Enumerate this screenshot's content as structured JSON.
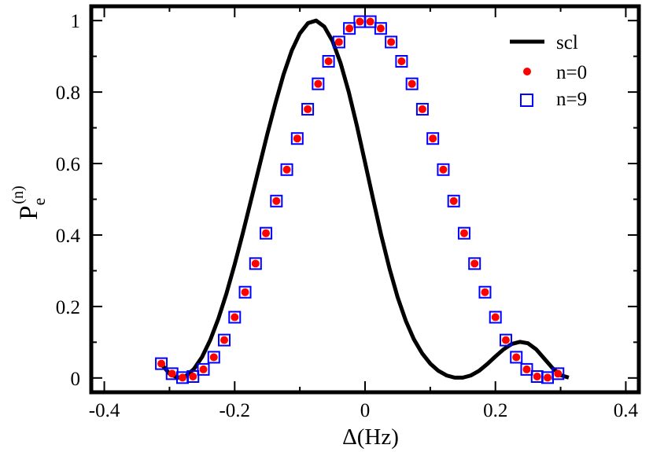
{
  "chart_data": {
    "type": "line",
    "title": "",
    "xlabel": "Δ(Hz)",
    "ylabel": {
      "main": "P",
      "sub": "e",
      "sup": "(n)"
    },
    "xlim": [
      -0.42,
      0.42
    ],
    "ylim": [
      -0.04,
      1.04
    ],
    "xticks": [
      -0.4,
      -0.2,
      0,
      0.2,
      0.4
    ],
    "xtick_labels": [
      "-0.4",
      "-0.2",
      "0",
      "0.2",
      "0.4"
    ],
    "yticks": [
      0,
      0.2,
      0.4,
      0.6,
      0.8,
      1
    ],
    "ytick_labels": [
      "0",
      "0.2",
      "0.4",
      "0.6",
      "0.8",
      "1"
    ],
    "grid": false,
    "legend_position": "top-right",
    "series": [
      {
        "name": "scl",
        "style": "line",
        "color": "#000000",
        "x": [
          -0.3125,
          -0.3,
          -0.2875,
          -0.275,
          -0.2625,
          -0.25,
          -0.2375,
          -0.225,
          -0.2125,
          -0.2,
          -0.1875,
          -0.175,
          -0.1625,
          -0.15,
          -0.1375,
          -0.125,
          -0.1125,
          -0.1,
          -0.0875,
          -0.075,
          -0.0625,
          -0.05,
          -0.0375,
          -0.025,
          -0.0125,
          0,
          0.0125,
          0.025,
          0.0375,
          0.05,
          0.0625,
          0.075,
          0.0875,
          0.1,
          0.1125,
          0.125,
          0.1375,
          0.15,
          0.1625,
          0.175,
          0.1875,
          0.2,
          0.2125,
          0.225,
          0.2375,
          0.25,
          0.2625,
          0.275,
          0.2875,
          0.3,
          0.3125
        ],
        "y": [
          0.039,
          0.012,
          0.001,
          0.005,
          0.025,
          0.059,
          0.106,
          0.166,
          0.237,
          0.318,
          0.405,
          0.497,
          0.59,
          0.682,
          0.769,
          0.849,
          0.916,
          0.964,
          0.993,
          1.0,
          0.983,
          0.943,
          0.881,
          0.8,
          0.706,
          0.603,
          0.499,
          0.398,
          0.306,
          0.226,
          0.16,
          0.108,
          0.069,
          0.04,
          0.02,
          0.007,
          0.001,
          0.001,
          0.007,
          0.02,
          0.039,
          0.06,
          0.08,
          0.095,
          0.101,
          0.097,
          0.08,
          0.054,
          0.028,
          0.008,
          0.001
        ]
      },
      {
        "name": "n=0",
        "style": "dots",
        "color": "#ff0000",
        "x": [
          -0.3125,
          -0.296,
          -0.28,
          -0.264,
          -0.248,
          -0.232,
          -0.216,
          -0.2,
          -0.184,
          -0.168,
          -0.152,
          -0.136,
          -0.12,
          -0.104,
          -0.088,
          -0.072,
          -0.056,
          -0.04,
          -0.024,
          -0.008,
          0.008,
          0.024,
          0.04,
          0.056,
          0.072,
          0.088,
          0.104,
          0.12,
          0.136,
          0.152,
          0.168,
          0.184,
          0.2,
          0.216,
          0.232,
          0.248,
          0.264,
          0.28,
          0.296
        ],
        "y": [
          0.04,
          0.012,
          0.001,
          0.004,
          0.024,
          0.058,
          0.106,
          0.17,
          0.24,
          0.32,
          0.405,
          0.495,
          0.583,
          0.67,
          0.752,
          0.823,
          0.886,
          0.94,
          0.978,
          0.997,
          0.997,
          0.978,
          0.94,
          0.886,
          0.823,
          0.752,
          0.67,
          0.583,
          0.495,
          0.405,
          0.32,
          0.24,
          0.17,
          0.106,
          0.058,
          0.024,
          0.004,
          0.001,
          0.012
        ]
      },
      {
        "name": "n=9",
        "style": "open-squares",
        "color": "#0000ff",
        "x": [
          -0.3125,
          -0.296,
          -0.28,
          -0.264,
          -0.248,
          -0.232,
          -0.216,
          -0.2,
          -0.184,
          -0.168,
          -0.152,
          -0.136,
          -0.12,
          -0.104,
          -0.088,
          -0.072,
          -0.056,
          -0.04,
          -0.024,
          -0.008,
          0.008,
          0.024,
          0.04,
          0.056,
          0.072,
          0.088,
          0.104,
          0.12,
          0.136,
          0.152,
          0.168,
          0.184,
          0.2,
          0.216,
          0.232,
          0.248,
          0.264,
          0.28,
          0.296
        ],
        "y": [
          0.04,
          0.012,
          0.001,
          0.004,
          0.024,
          0.058,
          0.106,
          0.17,
          0.24,
          0.32,
          0.405,
          0.495,
          0.583,
          0.67,
          0.752,
          0.823,
          0.886,
          0.94,
          0.978,
          0.997,
          0.997,
          0.978,
          0.94,
          0.886,
          0.823,
          0.752,
          0.67,
          0.583,
          0.495,
          0.405,
          0.32,
          0.24,
          0.17,
          0.106,
          0.058,
          0.024,
          0.004,
          0.001,
          0.012
        ]
      }
    ]
  }
}
